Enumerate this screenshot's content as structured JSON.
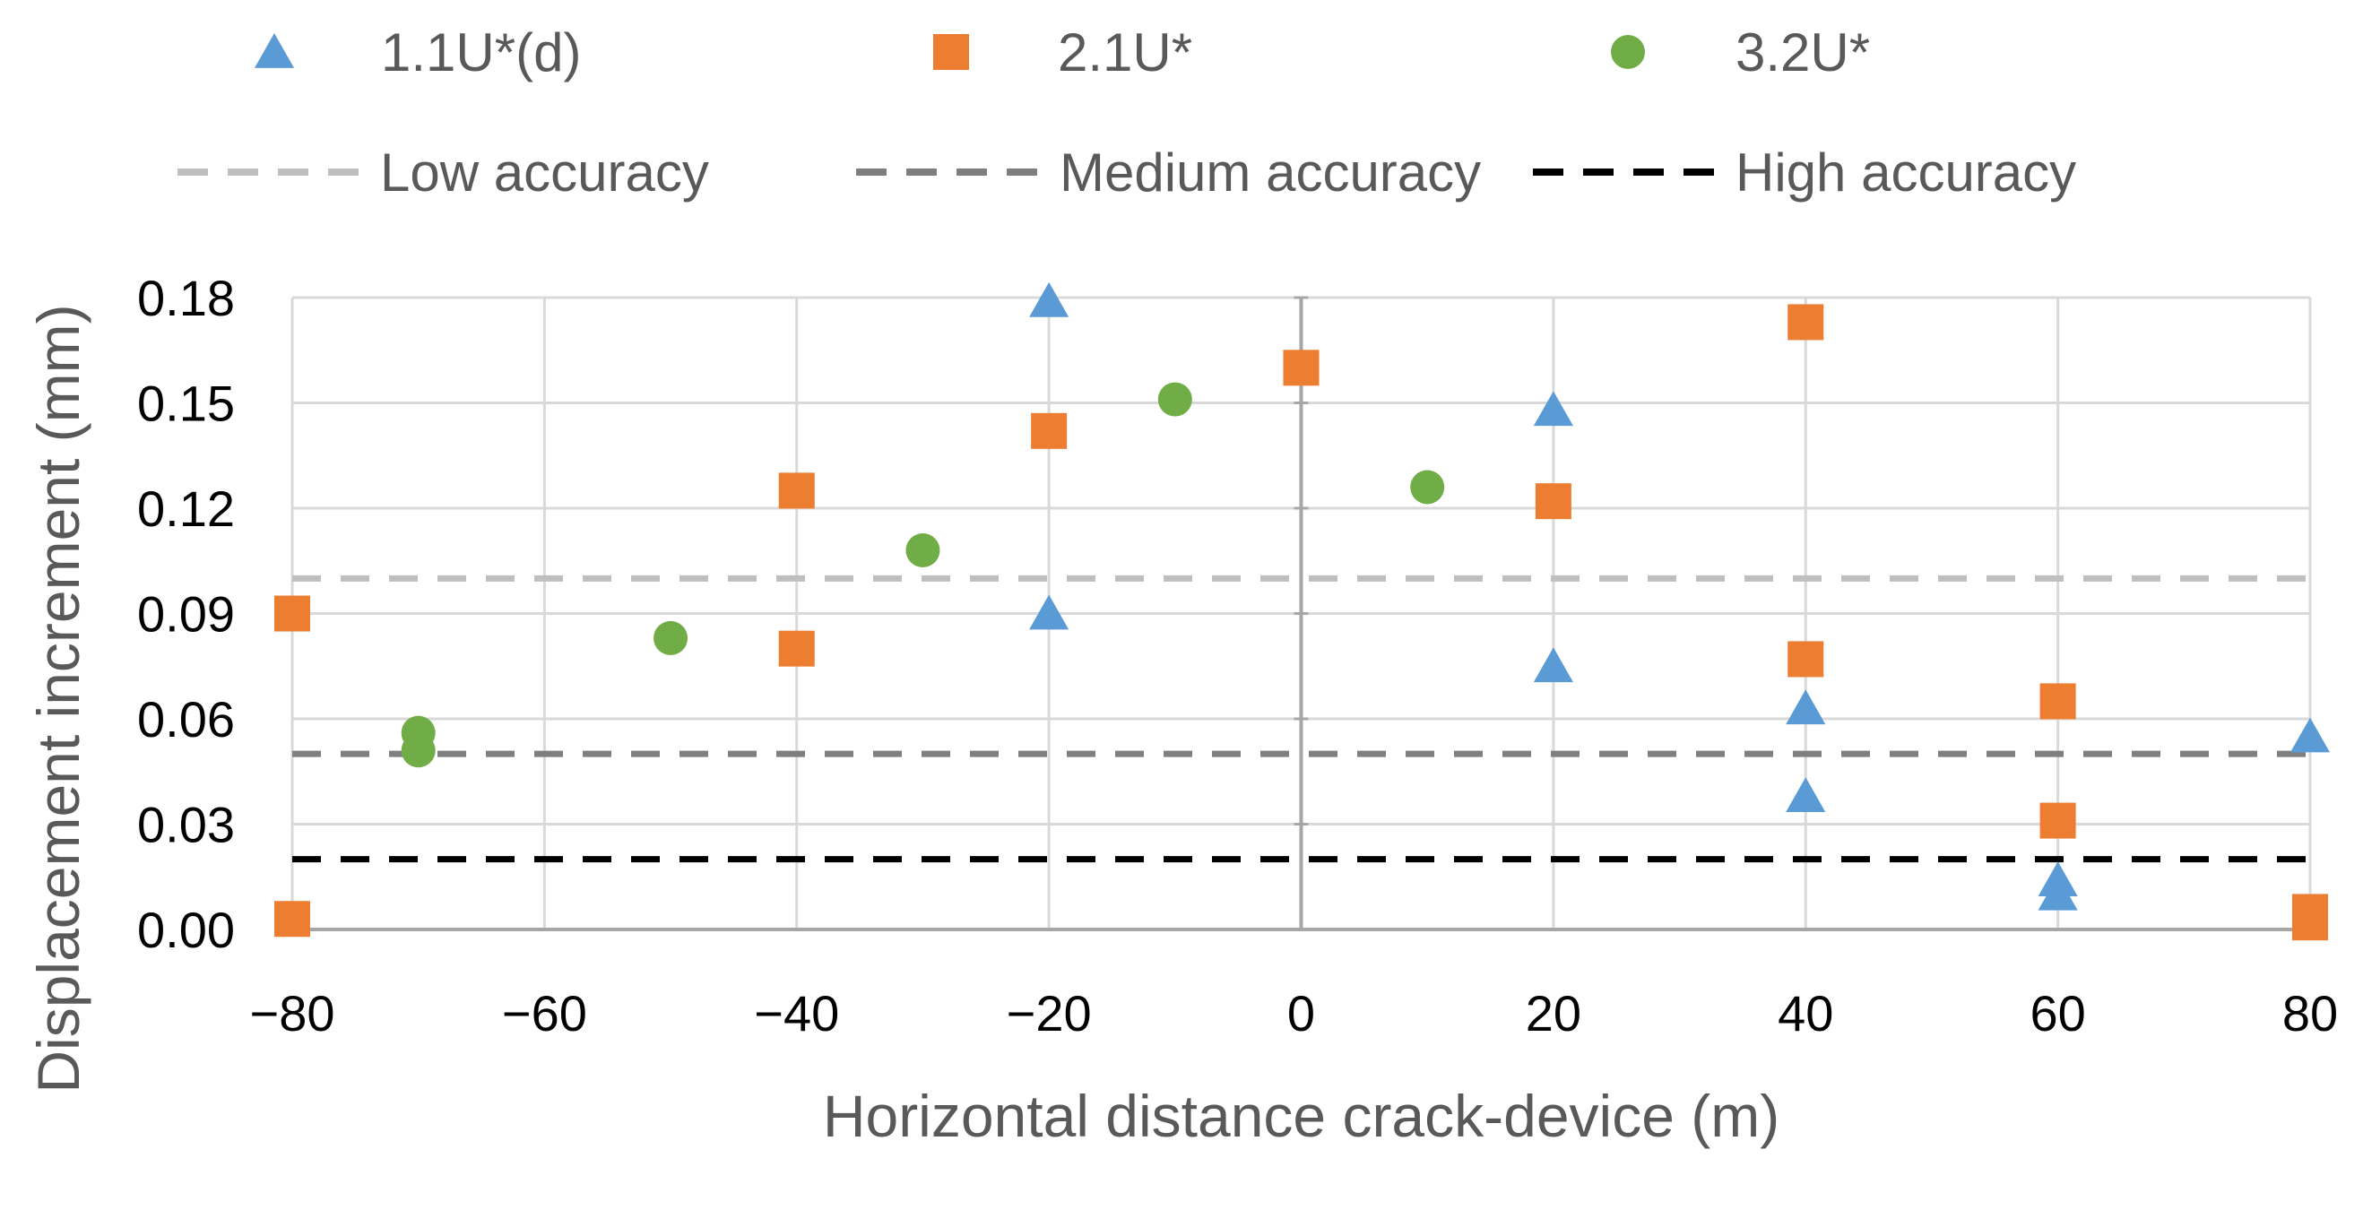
{
  "chart_data": {
    "type": "scatter",
    "xlabel": "Horizontal distance crack-device (m)",
    "ylabel": "Displacement increment (mm)",
    "xlim": [
      -80,
      80
    ],
    "ylim": [
      0,
      0.18
    ],
    "x_ticks": [
      "−80",
      "−60",
      "−40",
      "−20",
      "0",
      "20",
      "40",
      "60",
      "80"
    ],
    "y_ticks": [
      "0.00",
      "0.03",
      "0.06",
      "0.09",
      "0.12",
      "0.15",
      "0.18"
    ],
    "grid": true,
    "legend_position": "top",
    "series": [
      {
        "name": "1.1U*(d)",
        "marker": "triangle",
        "color": "#5B9BD5",
        "points": [
          [
            -20,
            0.179
          ],
          [
            -20,
            0.09
          ],
          [
            20,
            0.148
          ],
          [
            20,
            0.075
          ],
          [
            40,
            0.063
          ],
          [
            40,
            0.038
          ],
          [
            60,
            0.014
          ],
          [
            60,
            0.01
          ],
          [
            80,
            0.055
          ]
        ]
      },
      {
        "name": "2.1U*",
        "marker": "square",
        "color": "#ED7D31",
        "points": [
          [
            -80,
            0.09
          ],
          [
            -80,
            0.003
          ],
          [
            -40,
            0.125
          ],
          [
            -40,
            0.08
          ],
          [
            -20,
            0.142
          ],
          [
            0,
            0.16
          ],
          [
            20,
            0.122
          ],
          [
            40,
            0.173
          ],
          [
            40,
            0.077
          ],
          [
            60,
            0.065
          ],
          [
            60,
            0.031
          ],
          [
            80,
            0.005
          ],
          [
            80,
            0.002
          ]
        ]
      },
      {
        "name": "3.2U*",
        "marker": "circle",
        "color": "#70AD47",
        "points": [
          [
            -70,
            0.056
          ],
          [
            -70,
            0.051
          ],
          [
            -50,
            0.083
          ],
          [
            -30,
            0.108
          ],
          [
            -10,
            0.151
          ],
          [
            10,
            0.126
          ]
        ]
      }
    ],
    "reference_lines": [
      {
        "name": "Low accuracy",
        "y": 0.1,
        "color": "#BFBFBF",
        "style": "dashed"
      },
      {
        "name": "Medium accuracy",
        "y": 0.05,
        "color": "#7F7F7F",
        "style": "dashed"
      },
      {
        "name": "High accuracy",
        "y": 0.02,
        "color": "#000000",
        "style": "dashed"
      }
    ]
  }
}
